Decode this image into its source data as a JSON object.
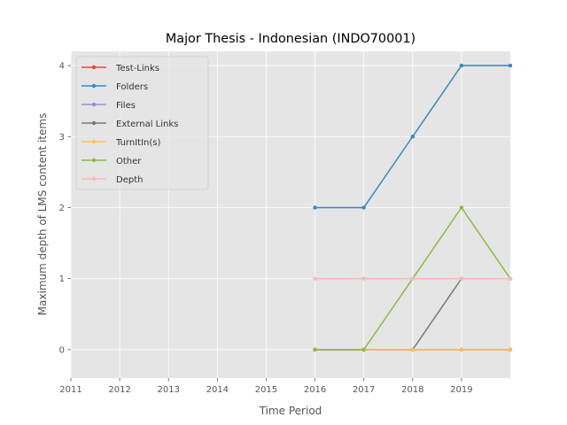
{
  "chart_data": {
    "type": "line",
    "title": "Major Thesis - Indonesian (INDO70001)",
    "xlabel": "Time Period",
    "ylabel": "Maximum depth of LMS content items",
    "x_ticks": [
      "2011",
      "2012",
      "2013",
      "2014",
      "2015",
      "2016",
      "2017",
      "2018",
      "2019"
    ],
    "y_ticks": [
      "0",
      "1",
      "2",
      "3",
      "4"
    ],
    "xlim": [
      2011,
      2020
    ],
    "ylim": [
      -0.4,
      4.2
    ],
    "grid": true,
    "legend_position": "top-left",
    "x": [
      2016,
      2017,
      2018,
      2019,
      2020
    ],
    "series": [
      {
        "name": "Test-Links",
        "color": "#e24a33",
        "values": [
          0,
          0,
          0,
          0,
          0
        ]
      },
      {
        "name": "Folders",
        "color": "#348abd",
        "values": [
          2,
          2,
          3,
          4,
          4
        ]
      },
      {
        "name": "Files",
        "color": "#988ed5",
        "values": [
          0,
          0,
          0,
          0,
          0
        ]
      },
      {
        "name": "External Links",
        "color": "#777777",
        "values": [
          0,
          0,
          0,
          1,
          1
        ]
      },
      {
        "name": "TurnItIn(s)",
        "color": "#fbc15e",
        "values": [
          0,
          0,
          0,
          0,
          0
        ]
      },
      {
        "name": "Other",
        "color": "#8eba42",
        "values": [
          0,
          0,
          1,
          2,
          1
        ]
      },
      {
        "name": "Depth",
        "color": "#ffb5b8",
        "values": [
          1,
          1,
          1,
          1,
          1
        ]
      }
    ]
  }
}
